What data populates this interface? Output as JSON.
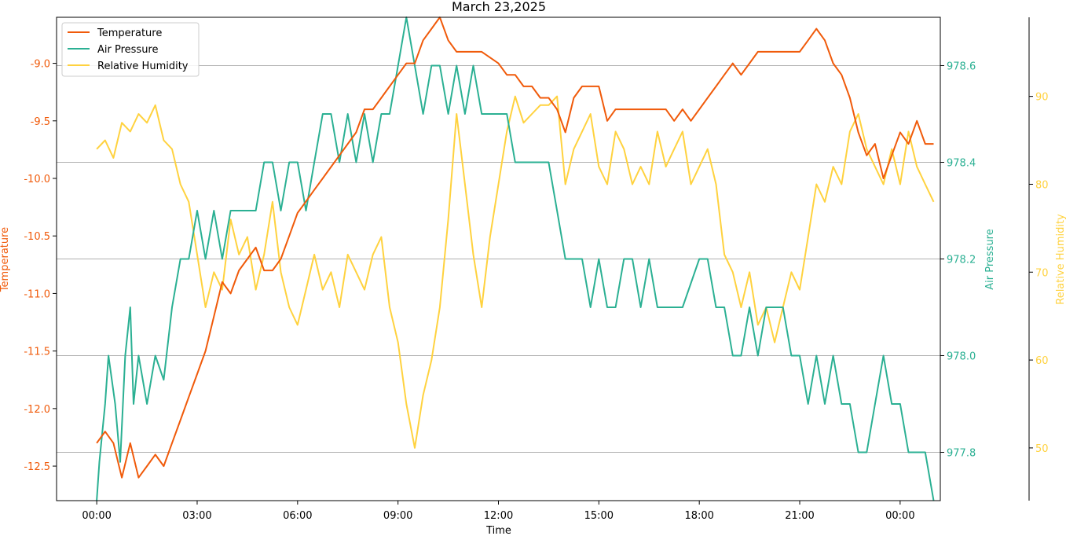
{
  "chart_data": {
    "type": "line",
    "title": "March 23,2025",
    "xlabel": "Time",
    "x_ticks": [
      "00:00",
      "03:00",
      "06:00",
      "09:00",
      "12:00",
      "15:00",
      "18:00",
      "21:00",
      "00:00"
    ],
    "x_range_hours": [
      -1.2,
      25.2
    ],
    "legend_position": "top-left",
    "grid": "horizontal lines at air pressure ticks",
    "axes": {
      "temperature": {
        "label": "Temperature",
        "color": "#f05a0a",
        "ylim": [
          -12.8,
          -8.6
        ],
        "ticks": [
          "-12.5",
          "-12.0",
          "-11.5",
          "-11.0",
          "-10.5",
          "-10.0",
          "-9.5",
          "-9.0"
        ]
      },
      "air_pressure": {
        "label": "Air Pressure",
        "color": "#2bb093",
        "ylim": [
          977.7,
          978.7
        ],
        "ticks": [
          "977.8",
          "978.0",
          "978.2",
          "978.4",
          "978.6"
        ]
      },
      "relative_humidity": {
        "label": "Relative Humidity",
        "color": "#ffd23f",
        "ylim": [
          44,
          99
        ],
        "ticks": [
          "50",
          "60",
          "70",
          "80",
          "90"
        ]
      }
    },
    "series": [
      {
        "name": "Temperature",
        "axis": "temperature",
        "color": "#f05a0a",
        "points": [
          [
            0.0,
            -12.3
          ],
          [
            0.25,
            -12.2
          ],
          [
            0.5,
            -12.3
          ],
          [
            0.75,
            -12.6
          ],
          [
            1.0,
            -12.3
          ],
          [
            1.25,
            -12.6
          ],
          [
            1.5,
            -12.5
          ],
          [
            1.75,
            -12.4
          ],
          [
            2.0,
            -12.5
          ],
          [
            2.25,
            -12.3
          ],
          [
            2.5,
            -12.1
          ],
          [
            2.75,
            -11.9
          ],
          [
            3.0,
            -11.7
          ],
          [
            3.25,
            -11.5
          ],
          [
            3.5,
            -11.2
          ],
          [
            3.75,
            -10.9
          ],
          [
            4.0,
            -11.0
          ],
          [
            4.25,
            -10.8
          ],
          [
            4.5,
            -10.7
          ],
          [
            4.75,
            -10.6
          ],
          [
            5.0,
            -10.8
          ],
          [
            5.25,
            -10.8
          ],
          [
            5.5,
            -10.7
          ],
          [
            5.75,
            -10.5
          ],
          [
            6.0,
            -10.3
          ],
          [
            6.25,
            -10.2
          ],
          [
            6.5,
            -10.1
          ],
          [
            6.75,
            -10.0
          ],
          [
            7.0,
            -9.9
          ],
          [
            7.25,
            -9.8
          ],
          [
            7.5,
            -9.7
          ],
          [
            7.75,
            -9.6
          ],
          [
            8.0,
            -9.4
          ],
          [
            8.25,
            -9.4
          ],
          [
            8.5,
            -9.3
          ],
          [
            8.75,
            -9.2
          ],
          [
            9.0,
            -9.1
          ],
          [
            9.25,
            -9.0
          ],
          [
            9.5,
            -9.0
          ],
          [
            9.75,
            -8.8
          ],
          [
            10.0,
            -8.7
          ],
          [
            10.25,
            -8.6
          ],
          [
            10.5,
            -8.8
          ],
          [
            10.75,
            -8.9
          ],
          [
            11.0,
            -8.9
          ],
          [
            11.5,
            -8.9
          ],
          [
            12.0,
            -9.0
          ],
          [
            12.25,
            -9.1
          ],
          [
            12.5,
            -9.1
          ],
          [
            12.75,
            -9.2
          ],
          [
            13.0,
            -9.2
          ],
          [
            13.25,
            -9.3
          ],
          [
            13.5,
            -9.3
          ],
          [
            13.75,
            -9.4
          ],
          [
            14.0,
            -9.6
          ],
          [
            14.25,
            -9.3
          ],
          [
            14.5,
            -9.2
          ],
          [
            15.0,
            -9.2
          ],
          [
            15.25,
            -9.5
          ],
          [
            15.5,
            -9.4
          ],
          [
            16.0,
            -9.4
          ],
          [
            16.5,
            -9.4
          ],
          [
            17.0,
            -9.4
          ],
          [
            17.25,
            -9.5
          ],
          [
            17.5,
            -9.4
          ],
          [
            17.75,
            -9.5
          ],
          [
            18.0,
            -9.4
          ],
          [
            18.25,
            -9.3
          ],
          [
            18.5,
            -9.2
          ],
          [
            18.75,
            -9.1
          ],
          [
            19.0,
            -9.0
          ],
          [
            19.25,
            -9.1
          ],
          [
            19.5,
            -9.0
          ],
          [
            19.75,
            -8.9
          ],
          [
            20.0,
            -8.9
          ],
          [
            20.5,
            -8.9
          ],
          [
            20.75,
            -8.9
          ],
          [
            21.0,
            -8.9
          ],
          [
            21.25,
            -8.8
          ],
          [
            21.5,
            -8.7
          ],
          [
            21.75,
            -8.8
          ],
          [
            22.0,
            -9.0
          ],
          [
            22.25,
            -9.1
          ],
          [
            22.5,
            -9.3
          ],
          [
            22.75,
            -9.6
          ],
          [
            23.0,
            -9.8
          ],
          [
            23.25,
            -9.7
          ],
          [
            23.5,
            -10.0
          ],
          [
            23.75,
            -9.8
          ],
          [
            24.0,
            -9.6
          ],
          [
            24.25,
            -9.7
          ],
          [
            24.5,
            -9.5
          ],
          [
            24.75,
            -9.7
          ],
          [
            25.0,
            -9.7
          ]
        ]
      },
      {
        "name": "Air Pressure",
        "axis": "air_pressure",
        "color": "#2bb093",
        "points": [
          [
            0.0,
            977.7
          ],
          [
            0.08,
            977.78
          ],
          [
            0.25,
            977.9
          ],
          [
            0.35,
            978.0
          ],
          [
            0.55,
            977.9
          ],
          [
            0.7,
            977.78
          ],
          [
            0.85,
            978.0
          ],
          [
            1.0,
            978.1
          ],
          [
            1.1,
            977.9
          ],
          [
            1.25,
            978.0
          ],
          [
            1.5,
            977.9
          ],
          [
            1.75,
            978.0
          ],
          [
            2.0,
            977.95
          ],
          [
            2.25,
            978.1
          ],
          [
            2.5,
            978.2
          ],
          [
            2.75,
            978.2
          ],
          [
            3.0,
            978.3
          ],
          [
            3.25,
            978.2
          ],
          [
            3.5,
            978.3
          ],
          [
            3.75,
            978.2
          ],
          [
            4.0,
            978.3
          ],
          [
            4.25,
            978.3
          ],
          [
            4.5,
            978.3
          ],
          [
            4.75,
            978.3
          ],
          [
            5.0,
            978.4
          ],
          [
            5.25,
            978.4
          ],
          [
            5.5,
            978.3
          ],
          [
            5.75,
            978.4
          ],
          [
            6.0,
            978.4
          ],
          [
            6.25,
            978.3
          ],
          [
            6.5,
            978.4
          ],
          [
            6.75,
            978.5
          ],
          [
            7.0,
            978.5
          ],
          [
            7.25,
            978.4
          ],
          [
            7.5,
            978.5
          ],
          [
            7.75,
            978.4
          ],
          [
            8.0,
            978.5
          ],
          [
            8.25,
            978.4
          ],
          [
            8.5,
            978.5
          ],
          [
            8.75,
            978.5
          ],
          [
            9.0,
            978.6
          ],
          [
            9.25,
            978.7
          ],
          [
            9.5,
            978.6
          ],
          [
            9.75,
            978.5
          ],
          [
            10.0,
            978.6
          ],
          [
            10.25,
            978.6
          ],
          [
            10.5,
            978.5
          ],
          [
            10.75,
            978.6
          ],
          [
            11.0,
            978.5
          ],
          [
            11.25,
            978.6
          ],
          [
            11.5,
            978.5
          ],
          [
            11.75,
            978.5
          ],
          [
            12.0,
            978.5
          ],
          [
            12.25,
            978.5
          ],
          [
            12.5,
            978.4
          ],
          [
            13.0,
            978.4
          ],
          [
            13.5,
            978.4
          ],
          [
            13.75,
            978.3
          ],
          [
            14.0,
            978.2
          ],
          [
            14.5,
            978.2
          ],
          [
            14.75,
            978.1
          ],
          [
            15.0,
            978.2
          ],
          [
            15.25,
            978.1
          ],
          [
            15.5,
            978.1
          ],
          [
            15.75,
            978.2
          ],
          [
            16.0,
            978.2
          ],
          [
            16.25,
            978.1
          ],
          [
            16.5,
            978.2
          ],
          [
            16.75,
            978.1
          ],
          [
            17.0,
            978.1
          ],
          [
            17.5,
            978.1
          ],
          [
            18.0,
            978.2
          ],
          [
            18.25,
            978.2
          ],
          [
            18.5,
            978.1
          ],
          [
            18.75,
            978.1
          ],
          [
            19.0,
            978.0
          ],
          [
            19.25,
            978.0
          ],
          [
            19.5,
            978.1
          ],
          [
            19.75,
            978.0
          ],
          [
            20.0,
            978.1
          ],
          [
            20.25,
            978.1
          ],
          [
            20.5,
            978.1
          ],
          [
            20.75,
            978.0
          ],
          [
            21.0,
            978.0
          ],
          [
            21.25,
            977.9
          ],
          [
            21.5,
            978.0
          ],
          [
            21.75,
            977.9
          ],
          [
            22.0,
            978.0
          ],
          [
            22.25,
            977.9
          ],
          [
            22.5,
            977.9
          ],
          [
            22.75,
            977.8
          ],
          [
            23.0,
            977.8
          ],
          [
            23.25,
            977.9
          ],
          [
            23.5,
            978.0
          ],
          [
            23.75,
            977.9
          ],
          [
            24.0,
            977.9
          ],
          [
            24.25,
            977.8
          ],
          [
            24.5,
            977.8
          ],
          [
            24.75,
            977.8
          ],
          [
            25.0,
            977.7
          ]
        ]
      },
      {
        "name": "Relative Humidity",
        "axis": "relative_humidity",
        "color": "#ffd23f",
        "points": [
          [
            0.0,
            84
          ],
          [
            0.25,
            85
          ],
          [
            0.5,
            83
          ],
          [
            0.75,
            87
          ],
          [
            1.0,
            86
          ],
          [
            1.25,
            88
          ],
          [
            1.5,
            87
          ],
          [
            1.75,
            89
          ],
          [
            2.0,
            85
          ],
          [
            2.25,
            84
          ],
          [
            2.5,
            80
          ],
          [
            2.75,
            78
          ],
          [
            3.0,
            72
          ],
          [
            3.25,
            66
          ],
          [
            3.5,
            70
          ],
          [
            3.75,
            68
          ],
          [
            4.0,
            76
          ],
          [
            4.25,
            72
          ],
          [
            4.5,
            74
          ],
          [
            4.75,
            68
          ],
          [
            5.0,
            72
          ],
          [
            5.25,
            78
          ],
          [
            5.5,
            70
          ],
          [
            5.75,
            66
          ],
          [
            6.0,
            64
          ],
          [
            6.25,
            68
          ],
          [
            6.5,
            72
          ],
          [
            6.75,
            68
          ],
          [
            7.0,
            70
          ],
          [
            7.25,
            66
          ],
          [
            7.5,
            72
          ],
          [
            7.75,
            70
          ],
          [
            8.0,
            68
          ],
          [
            8.25,
            72
          ],
          [
            8.5,
            74
          ],
          [
            8.75,
            66
          ],
          [
            9.0,
            62
          ],
          [
            9.25,
            55
          ],
          [
            9.5,
            50
          ],
          [
            9.75,
            56
          ],
          [
            10.0,
            60
          ],
          [
            10.25,
            66
          ],
          [
            10.5,
            76
          ],
          [
            10.75,
            88
          ],
          [
            11.0,
            80
          ],
          [
            11.25,
            72
          ],
          [
            11.5,
            66
          ],
          [
            11.75,
            74
          ],
          [
            12.0,
            80
          ],
          [
            12.25,
            86
          ],
          [
            12.5,
            90
          ],
          [
            12.75,
            87
          ],
          [
            13.0,
            88
          ],
          [
            13.25,
            89
          ],
          [
            13.5,
            89
          ],
          [
            13.75,
            90
          ],
          [
            14.0,
            80
          ],
          [
            14.25,
            84
          ],
          [
            14.5,
            86
          ],
          [
            14.75,
            88
          ],
          [
            15.0,
            82
          ],
          [
            15.25,
            80
          ],
          [
            15.5,
            86
          ],
          [
            15.75,
            84
          ],
          [
            16.0,
            80
          ],
          [
            16.25,
            82
          ],
          [
            16.5,
            80
          ],
          [
            16.75,
            86
          ],
          [
            17.0,
            82
          ],
          [
            17.25,
            84
          ],
          [
            17.5,
            86
          ],
          [
            17.75,
            80
          ],
          [
            18.0,
            82
          ],
          [
            18.25,
            84
          ],
          [
            18.5,
            80
          ],
          [
            18.75,
            72
          ],
          [
            19.0,
            70
          ],
          [
            19.25,
            66
          ],
          [
            19.5,
            70
          ],
          [
            19.75,
            64
          ],
          [
            20.0,
            66
          ],
          [
            20.25,
            62
          ],
          [
            20.5,
            66
          ],
          [
            20.75,
            70
          ],
          [
            21.0,
            68
          ],
          [
            21.25,
            74
          ],
          [
            21.5,
            80
          ],
          [
            21.75,
            78
          ],
          [
            22.0,
            82
          ],
          [
            22.25,
            80
          ],
          [
            22.5,
            86
          ],
          [
            22.75,
            88
          ],
          [
            23.0,
            84
          ],
          [
            23.25,
            82
          ],
          [
            23.5,
            80
          ],
          [
            23.75,
            84
          ],
          [
            24.0,
            80
          ],
          [
            24.25,
            86
          ],
          [
            24.5,
            82
          ],
          [
            24.75,
            80
          ],
          [
            25.0,
            78
          ]
        ]
      }
    ]
  }
}
